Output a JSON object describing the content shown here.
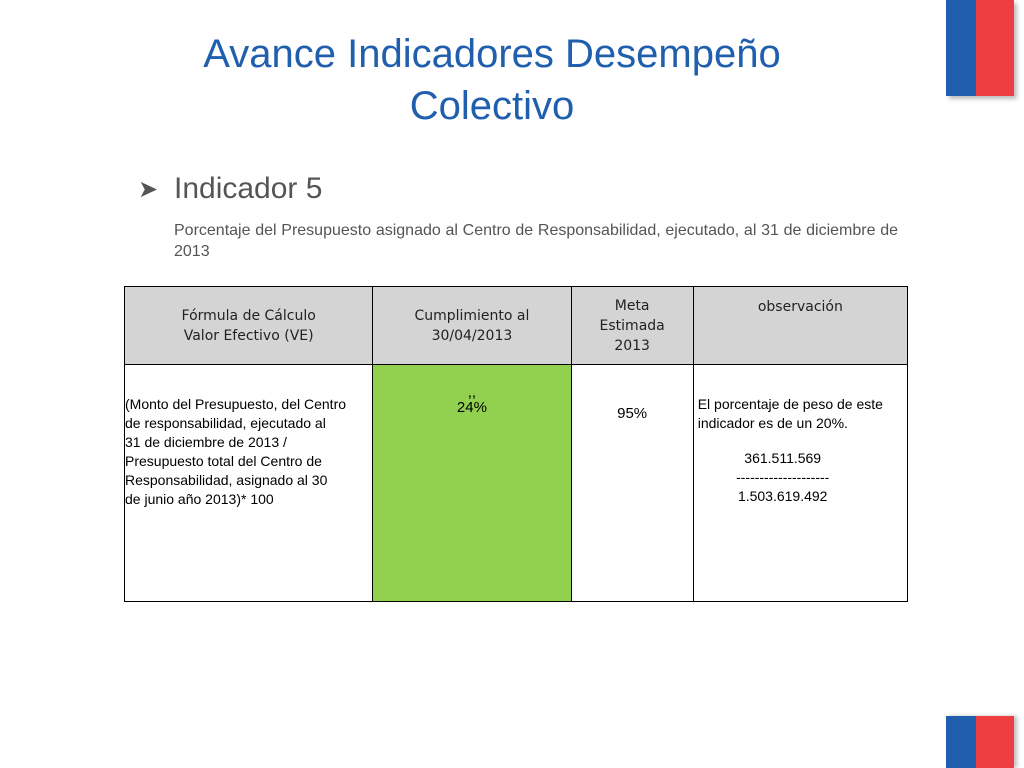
{
  "title": {
    "line1": "Avance Indicadores Desempeño",
    "line2": "Colectivo"
  },
  "bullet": {
    "icon": "arrow-bullet-icon",
    "label": "Indicador 5"
  },
  "description": "Porcentaje del Presupuesto asignado al Centro de Responsabilidad, ejecutado, al 31 de diciembre de 2013",
  "table": {
    "headers": {
      "formula": [
        "Fórmula de Cálculo",
        "Valor Efectivo  (VE)"
      ],
      "cumplimiento": [
        "Cumplimiento al",
        "30/04/2013"
      ],
      "meta": [
        "Meta",
        "Estimada",
        "2013"
      ],
      "observacion": "observación"
    },
    "row": {
      "formula_lines": [
        "(Monto del Presupuesto, del Centro",
        "de responsabilidad, ejecutado al",
        "31 de diciembre de 2013 /",
        "Presupuesto total del Centro de",
        "Responsabilidad, asignado al 30",
        "de junio año 2013)* 100"
      ],
      "cumplimiento_marks": ",,",
      "cumplimiento": "24%",
      "meta": "95%",
      "observacion_lines": [
        "El porcentaje de peso de este",
        "indicador es de un 20%."
      ],
      "numerator": "361.511.569",
      "divider": "--------------------",
      "denominator": "1.503.619.492"
    }
  },
  "colors": {
    "title": "#1f5fae",
    "flag_blue": "#1f5fae",
    "flag_red": "#ef3e42",
    "header_bg": "#d4d4d4",
    "highlight_green": "#92d050"
  }
}
